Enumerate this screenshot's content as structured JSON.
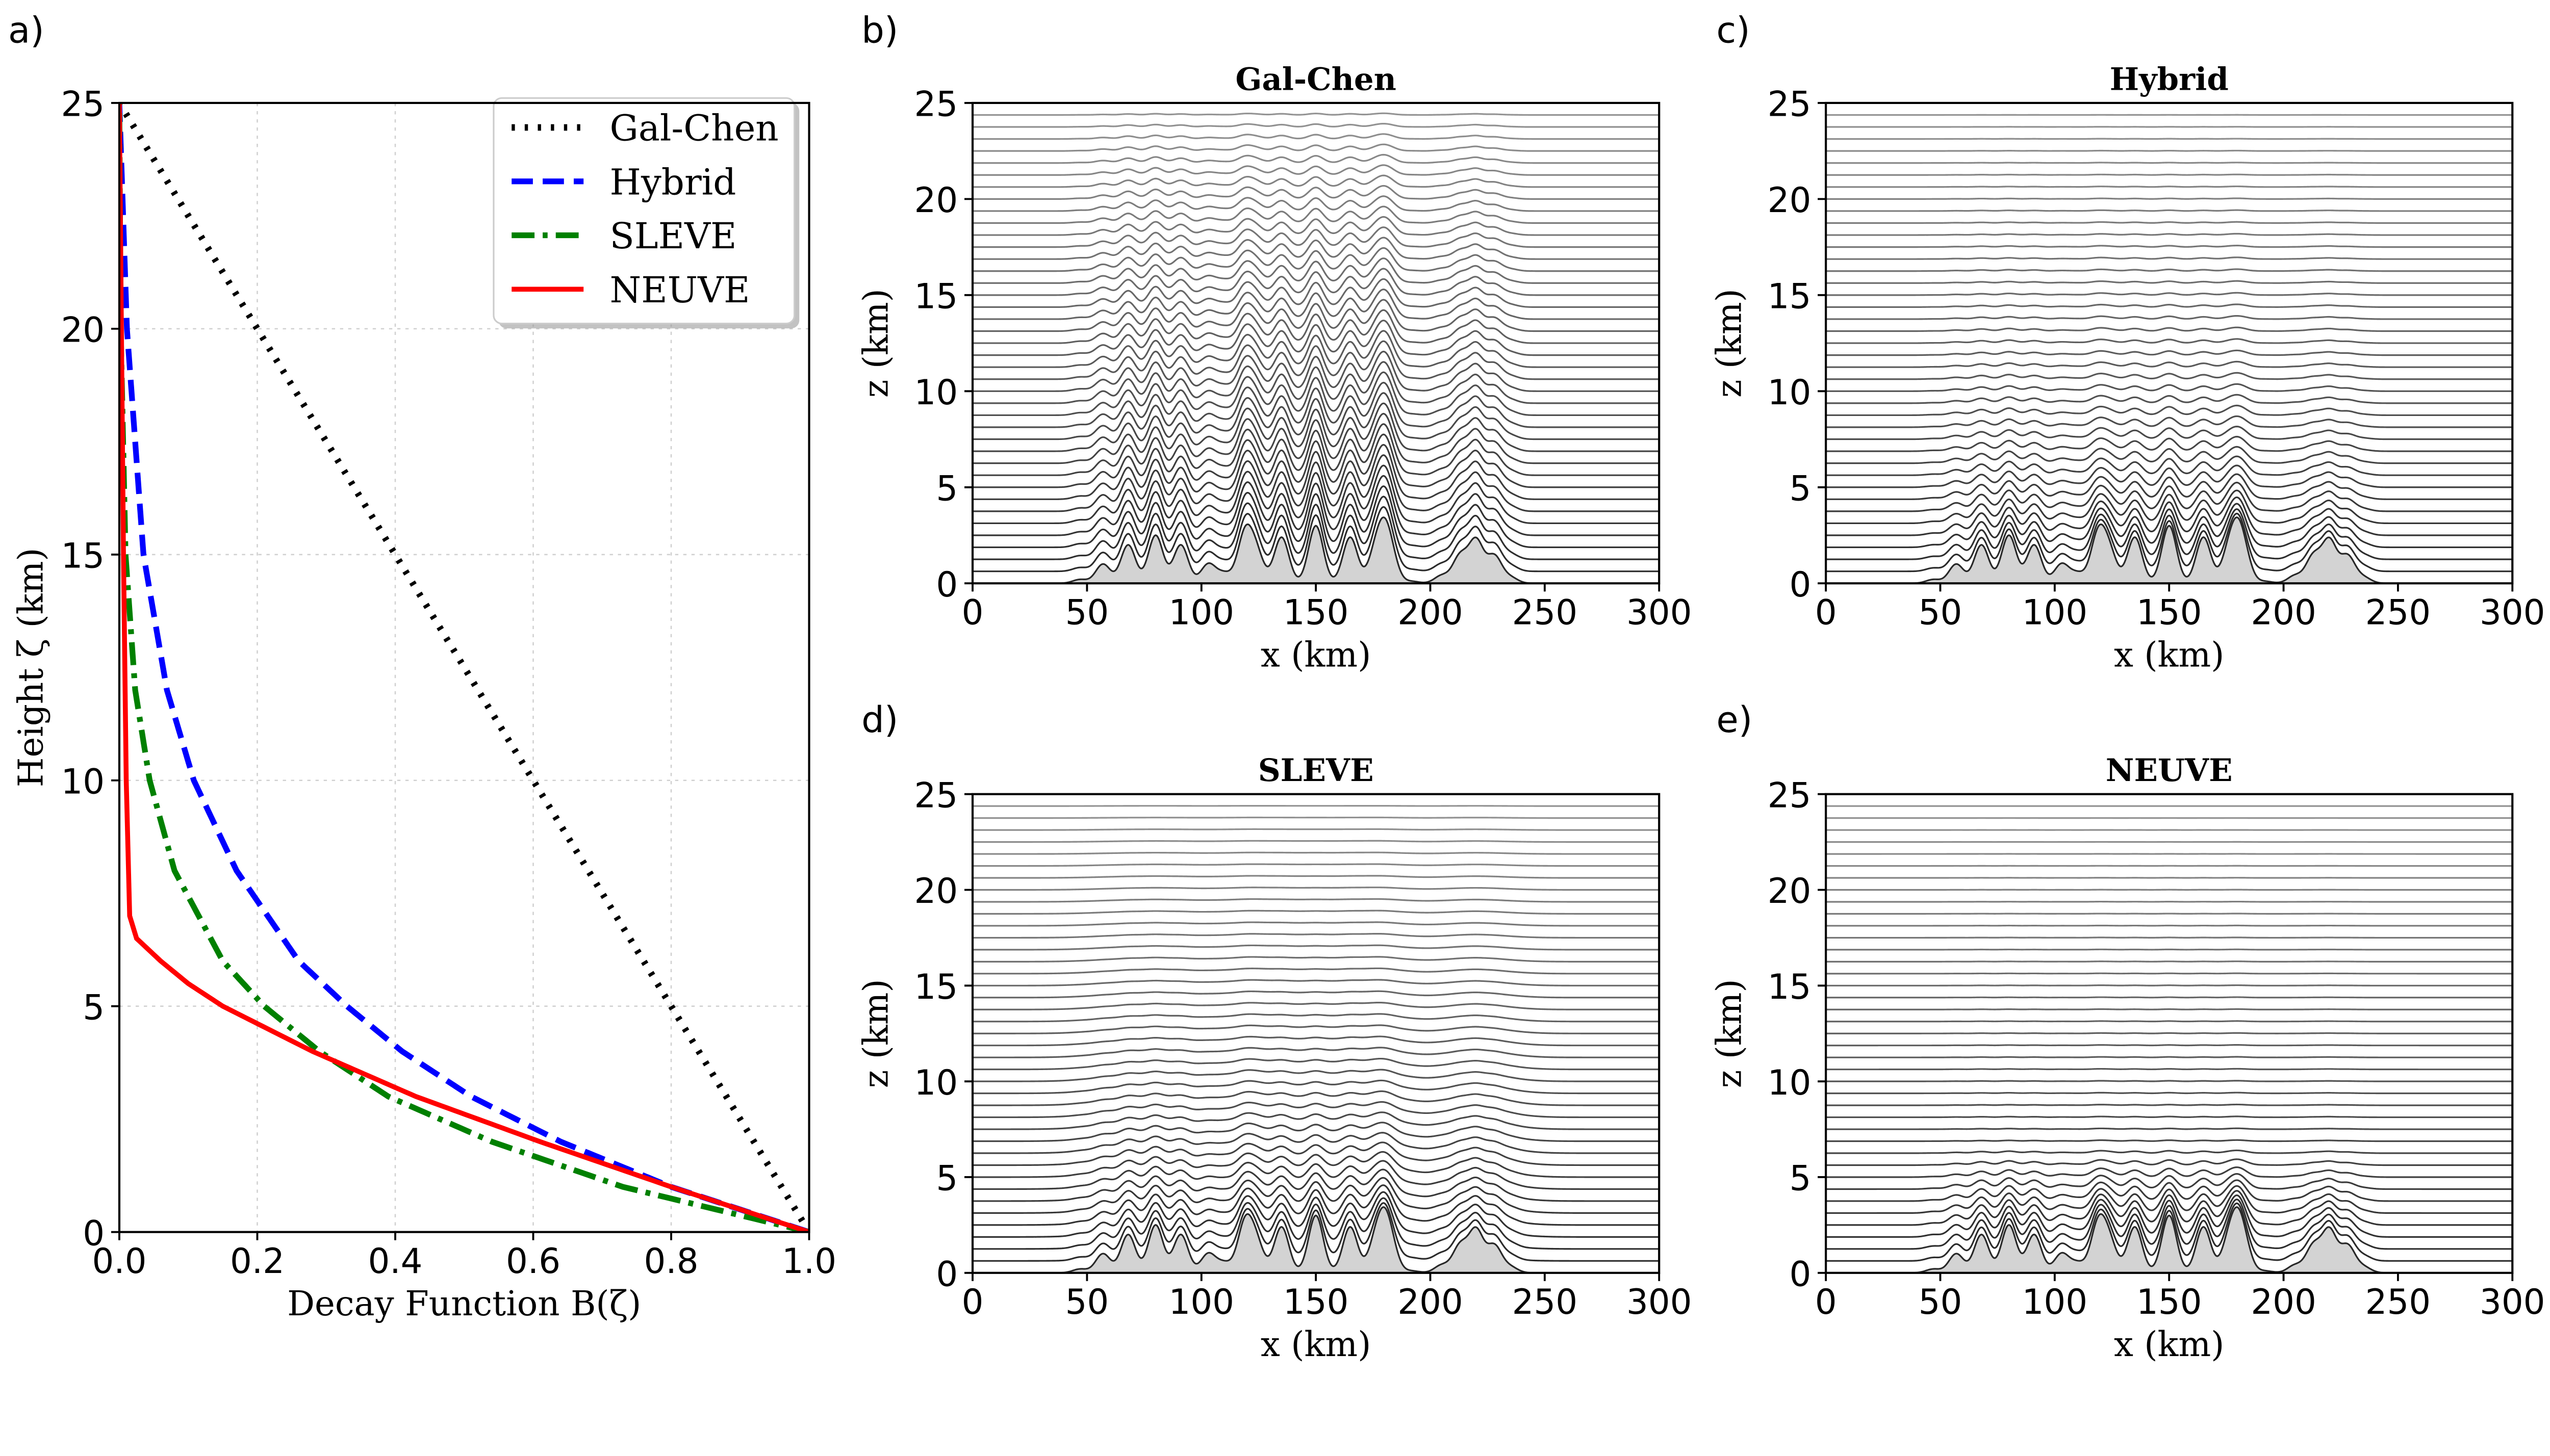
{
  "chart_data": [
    {
      "panel_label": "a)",
      "type": "line",
      "title": "",
      "xlabel": "Decay Function B(ζ)",
      "ylabel": "Height ζ (km)",
      "xlim": [
        0,
        1
      ],
      "ylim": [
        0,
        25
      ],
      "xticks": [
        "0.0",
        "0.2",
        "0.4",
        "0.6",
        "0.8",
        "1.0"
      ],
      "yticks": [
        "0",
        "5",
        "10",
        "15",
        "20",
        "25"
      ],
      "grid": true,
      "legend": "top-right",
      "series": [
        {
          "name": "Gal-Chen",
          "color": "#000000",
          "style": "dotted",
          "z": [
            0,
            25
          ],
          "B": [
            1,
            0
          ]
        },
        {
          "name": "Hybrid",
          "color": "#0000ff",
          "style": "dashed",
          "z": [
            0,
            1,
            2,
            3,
            4,
            5,
            6,
            8,
            10,
            12,
            15,
            20,
            25
          ],
          "B": [
            1,
            0.8,
            0.64,
            0.51,
            0.41,
            0.33,
            0.26,
            0.17,
            0.108,
            0.069,
            0.035,
            0.011,
            0
          ]
        },
        {
          "name": "SLEVE",
          "color": "#008000",
          "style": "dashdot",
          "z": [
            0,
            1,
            2,
            3,
            4,
            5,
            6,
            8,
            10,
            12,
            15,
            20,
            25
          ],
          "B": [
            1,
            0.73,
            0.54,
            0.39,
            0.29,
            0.21,
            0.15,
            0.08,
            0.044,
            0.023,
            0.009,
            0.002,
            0
          ]
        },
        {
          "name": "NEUVE",
          "color": "#ff0000",
          "style": "solid",
          "z": [
            0,
            1,
            2,
            3,
            4,
            5,
            5.5,
            6,
            6.5,
            7,
            10,
            15,
            20,
            25
          ],
          "B": [
            1,
            0.8,
            0.61,
            0.43,
            0.28,
            0.15,
            0.1,
            0.06,
            0.025,
            0.015,
            0.01,
            0.006,
            0.003,
            0
          ]
        }
      ]
    },
    {
      "panel_label": "b)",
      "type": "line",
      "title": "Gal-Chen",
      "coordinate": "Gal-Chen",
      "xlabel": "x (km)",
      "ylabel": "z (km)",
      "xlim": [
        0,
        300
      ],
      "ylim": [
        0,
        25
      ],
      "xticks": [
        "0",
        "50",
        "100",
        "150",
        "200",
        "250",
        "300"
      ],
      "yticks": [
        "0",
        "5",
        "10",
        "15",
        "20",
        "25"
      ]
    },
    {
      "panel_label": "c)",
      "type": "line",
      "title": "Hybrid",
      "coordinate": "Hybrid",
      "xlabel": "x (km)",
      "ylabel": "z (km)",
      "xlim": [
        0,
        300
      ],
      "ylim": [
        0,
        25
      ],
      "xticks": [
        "0",
        "50",
        "100",
        "150",
        "200",
        "250",
        "300"
      ],
      "yticks": [
        "0",
        "5",
        "10",
        "15",
        "20",
        "25"
      ]
    },
    {
      "panel_label": "d)",
      "type": "line",
      "title": "SLEVE",
      "coordinate": "SLEVE",
      "xlabel": "x (km)",
      "ylabel": "z (km)",
      "xlim": [
        0,
        300
      ],
      "ylim": [
        0,
        25
      ],
      "xticks": [
        "0",
        "50",
        "100",
        "150",
        "200",
        "250",
        "300"
      ],
      "yticks": [
        "0",
        "5",
        "10",
        "15",
        "20",
        "25"
      ]
    },
    {
      "panel_label": "e)",
      "type": "line",
      "title": "NEUVE",
      "coordinate": "NEUVE",
      "xlabel": "x (km)",
      "ylabel": "z (km)",
      "xlim": [
        0,
        300
      ],
      "ylim": [
        0,
        25
      ],
      "xticks": [
        "0",
        "50",
        "100",
        "150",
        "200",
        "250",
        "300"
      ],
      "yticks": [
        "0",
        "5",
        "10",
        "15",
        "20",
        "25"
      ]
    }
  ],
  "terrain": {
    "fill_color": "#d3d3d3",
    "peaks_x_km": [
      47,
      57,
      68,
      80,
      91,
      103,
      110,
      119,
      124,
      135,
      150,
      165,
      176,
      180,
      183,
      192,
      205,
      213,
      220,
      228,
      235
    ],
    "peaks_h_km": [
      0.2,
      1.0,
      2.0,
      2.5,
      2.0,
      1.0,
      0.5,
      2.5,
      1.5,
      2.4,
      3.0,
      2.4,
      1.4,
      2.2,
      0.9,
      0.1,
      0.4,
      1.4,
      2.2,
      1.4,
      0.3
    ]
  }
}
